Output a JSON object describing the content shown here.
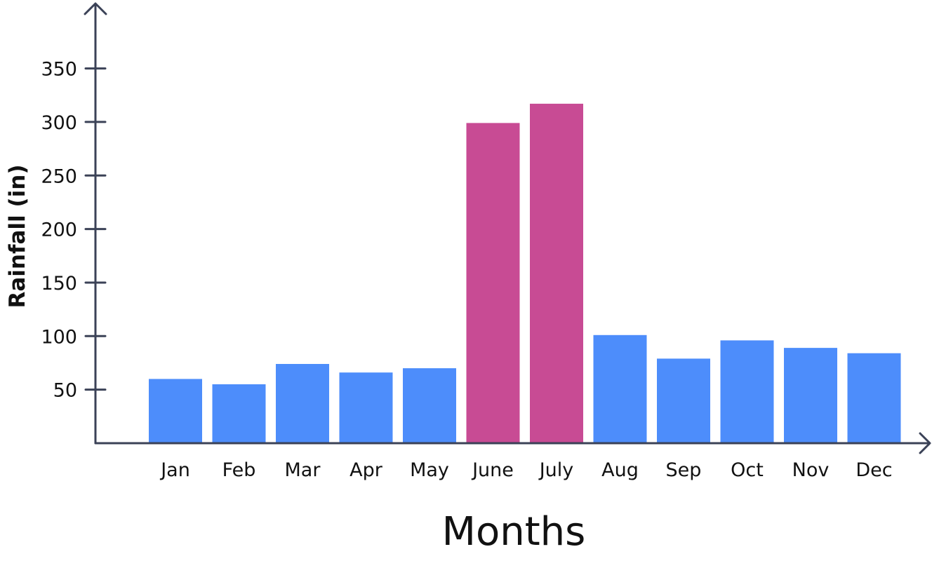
{
  "chart_data": {
    "type": "bar",
    "title": "",
    "xlabel": "Months",
    "ylabel": "Rainfall (in)",
    "categories": [
      "Jan",
      "Feb",
      "Mar",
      "Apr",
      "May",
      "June",
      "July",
      "Aug",
      "Sep",
      "Oct",
      "Nov",
      "Dec"
    ],
    "values": [
      60,
      55,
      74,
      66,
      70,
      299,
      317,
      101,
      79,
      96,
      89,
      84
    ],
    "bar_colors": [
      "#4D8DFB",
      "#4D8DFB",
      "#4D8DFB",
      "#4D8DFB",
      "#4D8DFB",
      "#C84B94",
      "#C84B94",
      "#4D8DFB",
      "#4D8DFB",
      "#4D8DFB",
      "#4D8DFB",
      "#4D8DFB"
    ],
    "yticks": [
      50,
      100,
      150,
      200,
      250,
      300,
      350
    ],
    "ylim": [
      0,
      390
    ],
    "grid": false,
    "axis_color": "#3B4257"
  }
}
